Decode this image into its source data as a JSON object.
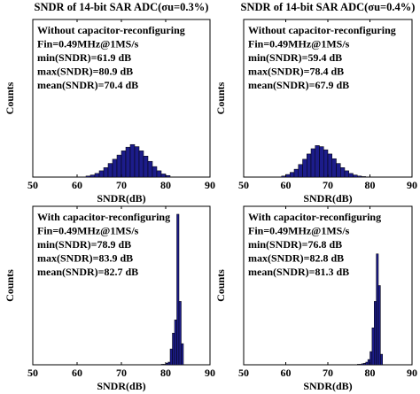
{
  "chart_data": [
    {
      "type": "histogram",
      "title": "SNDR of 14-bit SAR ADC(σu=0.3%)",
      "annotations": [
        "Without capacitor-reconfiguring",
        "Fin=0.49MHz@1MS/s",
        "min(SNDR)=61.9 dB",
        "max(SNDR)=80.9 dB",
        "mean(SNDR)=70.4 dB"
      ],
      "xlabel": "SNDR(dB)",
      "ylabel": "Counts",
      "bins": [
        62,
        63,
        64,
        65,
        66,
        67,
        68,
        69,
        70,
        71,
        72,
        73,
        74,
        75,
        76,
        77,
        78,
        79,
        80,
        81
      ],
      "values": [
        2,
        4,
        7,
        12,
        18,
        26,
        34,
        42,
        50,
        57,
        62,
        58,
        50,
        40,
        30,
        20,
        12,
        6,
        3
      ],
      "color": "#1c1c8a",
      "xlim": [
        50,
        90
      ],
      "ylim": [
        0,
        300
      ],
      "xticks": [
        50,
        60,
        70,
        80,
        90
      ]
    },
    {
      "type": "histogram",
      "title": "SNDR of 14-bit SAR ADC(σu=0.4%)",
      "annotations": [
        "Without capacitor-reconfiguring",
        "Fin=0.49MHz@1MS/s",
        "min(SNDR)=59.4 dB",
        "max(SNDR)=78.4 dB",
        "mean(SNDR)=67.9 dB"
      ],
      "xlabel": "SNDR(dB)",
      "ylabel": "Counts",
      "bins": [
        59,
        60,
        61,
        62,
        63,
        64,
        65,
        66,
        67,
        68,
        69,
        70,
        71,
        72,
        73,
        74,
        75,
        76,
        77,
        78,
        79
      ],
      "values": [
        2,
        5,
        9,
        15,
        24,
        34,
        44,
        54,
        60,
        58,
        52,
        44,
        35,
        26,
        18,
        12,
        7,
        4,
        2,
        1
      ],
      "color": "#1c1c8a",
      "xlim": [
        50,
        90
      ],
      "ylim": [
        0,
        300
      ],
      "xticks": [
        50,
        60,
        70,
        80,
        90
      ]
    },
    {
      "type": "histogram",
      "annotations": [
        "With capacitor-reconfiguring",
        "Fin=0.49MHz@1MS/s",
        "min(SNDR)=78.9 dB",
        "max(SNDR)=83.9 dB",
        "mean(SNDR)=82.7 dB"
      ],
      "xlabel": "SNDR(dB)",
      "ylabel": "Counts",
      "bins": [
        79,
        79.5,
        80,
        80.5,
        81,
        81.5,
        82,
        82.5,
        83,
        83.5,
        84
      ],
      "values": [
        1,
        1,
        3,
        5,
        30,
        60,
        85,
        285,
        120,
        40
      ],
      "color": "#1c1c8a",
      "xlim": [
        50,
        90
      ],
      "ylim": [
        0,
        300
      ],
      "xticks": [
        50,
        60,
        70,
        80,
        90
      ]
    },
    {
      "type": "histogram",
      "annotations": [
        "With capacitor-reconfiguring",
        "Fin=0.49MHz@1MS/s",
        "min(SNDR)=76.8 dB",
        "max(SNDR)=82.8 dB",
        "mean(SNDR)=81.3 dB"
      ],
      "xlabel": "SNDR(dB)",
      "ylabel": "Counts",
      "bins": [
        77,
        77.5,
        78,
        78.5,
        79,
        79.5,
        80,
        80.5,
        81,
        81.5,
        82,
        82.5,
        83
      ],
      "values": [
        1,
        1,
        2,
        3,
        5,
        10,
        25,
        70,
        120,
        210,
        150,
        20
      ],
      "color": "#1c1c8a",
      "xlim": [
        50,
        90
      ],
      "ylim": [
        0,
        300
      ],
      "xticks": [
        50,
        60,
        70,
        80,
        90
      ]
    }
  ]
}
